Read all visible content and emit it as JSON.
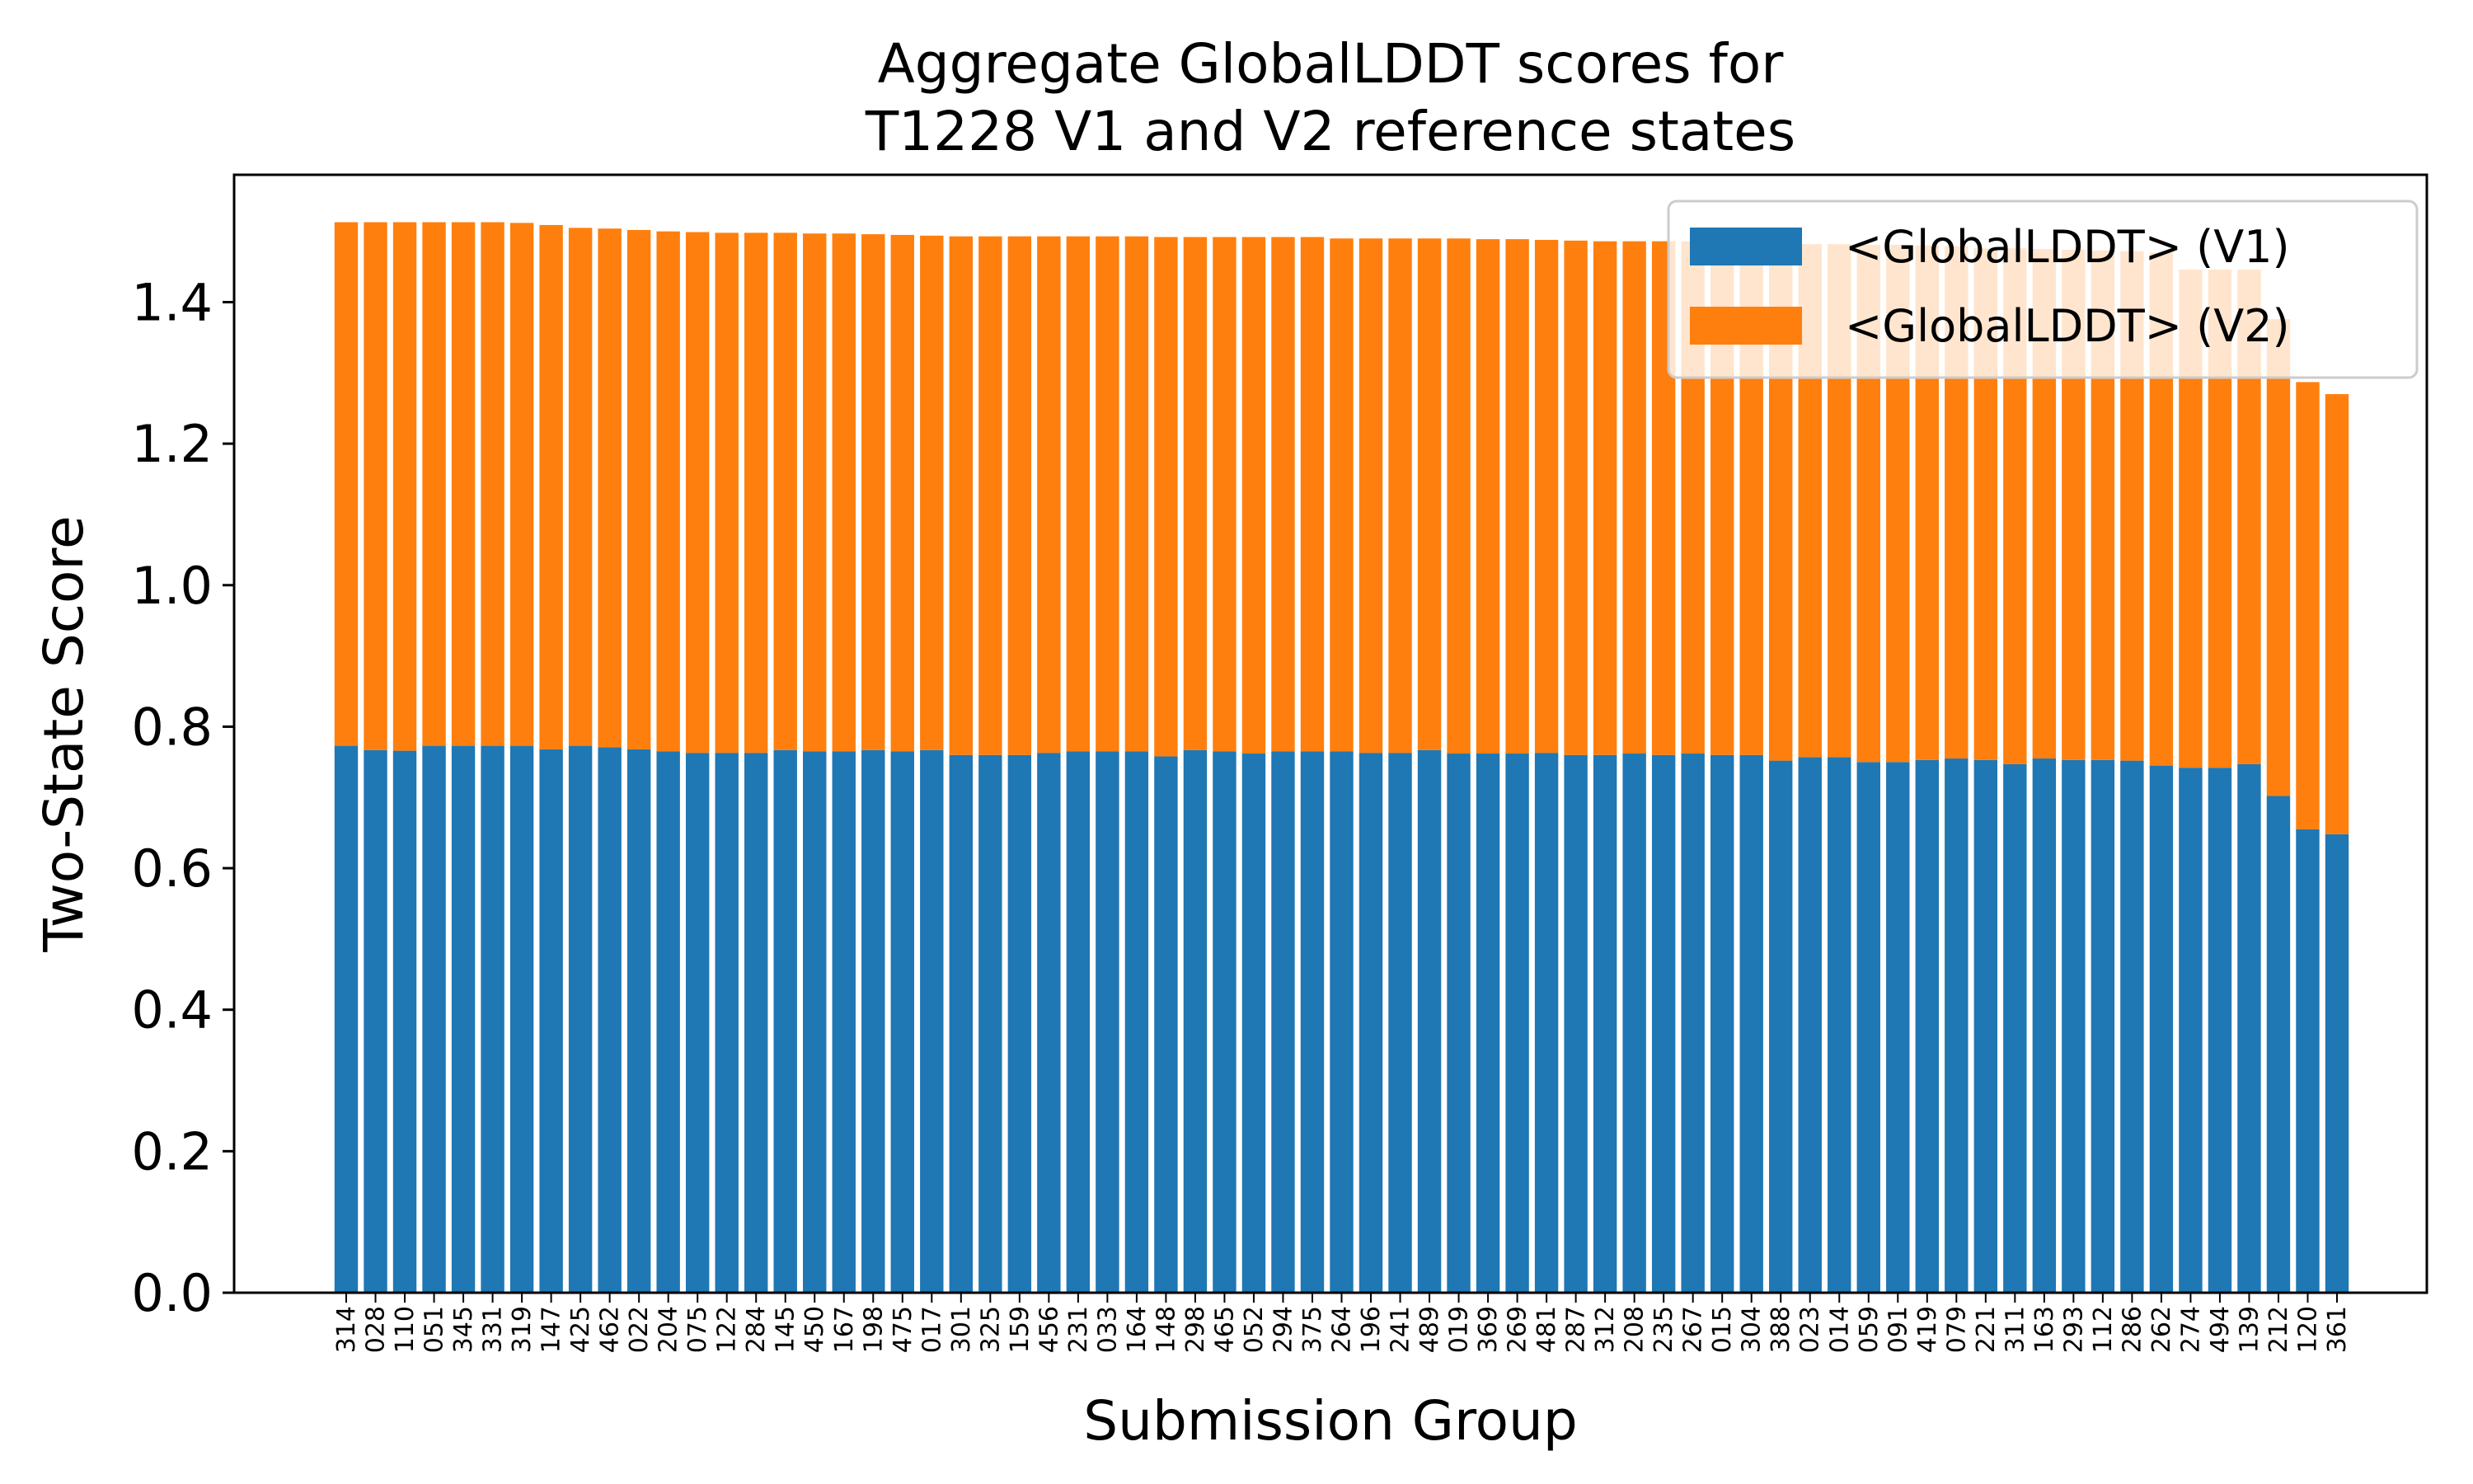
{
  "chart_data": {
    "type": "bar",
    "stacked": true,
    "title": [
      "Aggregate GlobalLDDT scores for",
      "T1228 V1 and V2 reference states"
    ],
    "xlabel": "Submission Group",
    "ylabel": "Two-State Score",
    "ylim": [
      0,
      1.58
    ],
    "yticks": [
      "0.0",
      "0.2",
      "0.4",
      "0.6",
      "0.8",
      "1.0",
      "1.2",
      "1.4"
    ],
    "grid": false,
    "legend_position": "top-right",
    "categories": [
      "314",
      "028",
      "110",
      "051",
      "345",
      "331",
      "319",
      "147",
      "425",
      "462",
      "022",
      "204",
      "075",
      "122",
      "284",
      "145",
      "450",
      "167",
      "198",
      "475",
      "017",
      "301",
      "325",
      "159",
      "456",
      "231",
      "033",
      "164",
      "148",
      "298",
      "465",
      "052",
      "294",
      "375",
      "264",
      "196",
      "241",
      "489",
      "019",
      "369",
      "269",
      "481",
      "287",
      "312",
      "208",
      "235",
      "267",
      "015",
      "304",
      "388",
      "023",
      "014",
      "059",
      "091",
      "419",
      "079",
      "221",
      "311",
      "163",
      "293",
      "112",
      "286",
      "262",
      "274",
      "494",
      "139",
      "212",
      "120",
      "361"
    ],
    "series": [
      {
        "name": "<GlobalLDDT> (V1)",
        "color": "#1f77b4",
        "values": [
          0.773,
          0.767,
          0.766,
          0.773,
          0.773,
          0.773,
          0.773,
          0.768,
          0.773,
          0.771,
          0.768,
          0.765,
          0.763,
          0.763,
          0.763,
          0.767,
          0.765,
          0.765,
          0.767,
          0.765,
          0.767,
          0.76,
          0.76,
          0.76,
          0.763,
          0.765,
          0.765,
          0.765,
          0.758,
          0.767,
          0.765,
          0.762,
          0.765,
          0.765,
          0.765,
          0.763,
          0.763,
          0.767,
          0.762,
          0.762,
          0.762,
          0.763,
          0.76,
          0.76,
          0.762,
          0.76,
          0.762,
          0.76,
          0.76,
          0.752,
          0.757,
          0.757,
          0.75,
          0.75,
          0.753,
          0.755,
          0.753,
          0.747,
          0.755,
          0.753,
          0.753,
          0.752,
          0.745,
          0.742,
          0.742,
          0.747,
          0.702,
          0.655,
          0.648
        ]
      },
      {
        "name": "<GlobalLDDT> (V2)",
        "color": "#ff7f0e",
        "values": [
          0.74,
          0.746,
          0.747,
          0.74,
          0.74,
          0.74,
          0.739,
          0.741,
          0.732,
          0.733,
          0.734,
          0.735,
          0.736,
          0.735,
          0.735,
          0.731,
          0.732,
          0.732,
          0.729,
          0.73,
          0.727,
          0.733,
          0.733,
          0.733,
          0.73,
          0.728,
          0.728,
          0.728,
          0.734,
          0.725,
          0.727,
          0.73,
          0.727,
          0.727,
          0.725,
          0.727,
          0.727,
          0.723,
          0.728,
          0.727,
          0.727,
          0.725,
          0.727,
          0.726,
          0.724,
          0.726,
          0.724,
          0.724,
          0.724,
          0.731,
          0.725,
          0.725,
          0.731,
          0.731,
          0.727,
          0.724,
          0.723,
          0.729,
          0.72,
          0.721,
          0.72,
          0.72,
          0.725,
          0.704,
          0.704,
          0.699,
          0.674,
          0.632,
          0.622
        ]
      }
    ]
  }
}
